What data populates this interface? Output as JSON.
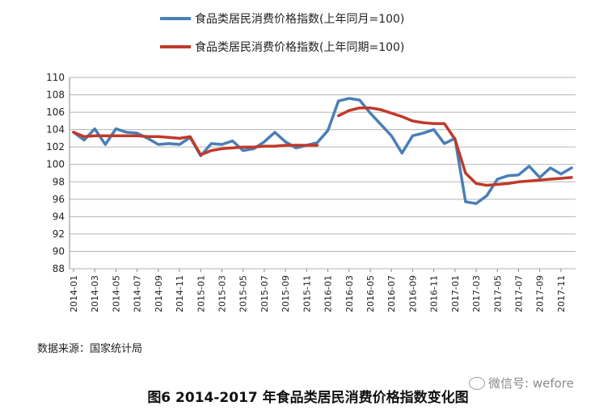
{
  "chart_data": {
    "type": "line",
    "title": "",
    "xlabel": "",
    "ylabel": "",
    "ylim": [
      88,
      110
    ],
    "yticks": [
      88,
      90,
      92,
      94,
      96,
      98,
      100,
      102,
      104,
      106,
      108,
      110
    ],
    "grid": true,
    "legend_position": "top-center",
    "x_tick_labels": [
      "2014-01",
      "2014-03",
      "2014-05",
      "2014-07",
      "2014-09",
      "2014-11",
      "2015-01",
      "2015-03",
      "2015-05",
      "2015-07",
      "2015-09",
      "2015-11",
      "2016-01",
      "2016-03",
      "2016-05",
      "2016-07",
      "2016-09",
      "2016-11",
      "2017-01",
      "2017-03",
      "2017-05",
      "2017-07",
      "2017-09",
      "2017-11"
    ],
    "x": [
      "2014-01",
      "2014-02",
      "2014-03",
      "2014-04",
      "2014-05",
      "2014-06",
      "2014-07",
      "2014-08",
      "2014-09",
      "2014-10",
      "2014-11",
      "2014-12",
      "2015-01",
      "2015-02",
      "2015-03",
      "2015-04",
      "2015-05",
      "2015-06",
      "2015-07",
      "2015-08",
      "2015-09",
      "2015-10",
      "2015-11",
      "2015-12",
      "2016-01",
      "2016-02",
      "2016-03",
      "2016-04",
      "2016-05",
      "2016-06",
      "2016-07",
      "2016-08",
      "2016-09",
      "2016-10",
      "2016-11",
      "2016-12",
      "2017-01",
      "2017-02",
      "2017-03",
      "2017-04",
      "2017-05",
      "2017-06",
      "2017-07",
      "2017-08",
      "2017-09",
      "2017-10",
      "2017-11",
      "2017-12"
    ],
    "series": [
      {
        "name": "食品类居民消费价格指数(上年同月=100)",
        "color": "#4a7fb5",
        "values": [
          103.7,
          102.8,
          104.1,
          102.3,
          104.1,
          103.7,
          103.6,
          103.0,
          102.3,
          102.4,
          102.3,
          103.1,
          101.0,
          102.4,
          102.3,
          102.7,
          101.6,
          101.8,
          102.6,
          103.7,
          102.6,
          101.9,
          102.2,
          102.5,
          103.9,
          107.3,
          107.6,
          107.4,
          105.9,
          104.6,
          103.3,
          101.3,
          103.3,
          103.6,
          104.0,
          102.4,
          103.0,
          95.7,
          95.5,
          96.4,
          98.3,
          98.7,
          98.8,
          99.8,
          98.5,
          99.6,
          98.9,
          99.6
        ]
      },
      {
        "name": "食品类居民消费价格指数(上年同期=100)",
        "color": "#c0392b",
        "values": [
          103.7,
          103.2,
          103.3,
          103.3,
          103.3,
          103.3,
          103.3,
          103.2,
          103.2,
          103.1,
          103.0,
          103.2,
          101.1,
          101.6,
          101.8,
          101.9,
          102.0,
          102.0,
          102.1,
          102.1,
          102.2,
          102.2,
          102.2,
          102.2,
          null,
          105.6,
          106.2,
          106.5,
          106.5,
          106.3,
          105.9,
          105.5,
          105.0,
          104.8,
          104.7,
          104.7,
          102.9,
          99.0,
          97.8,
          97.6,
          97.7,
          97.8,
          98.0,
          98.1,
          98.2,
          98.3,
          98.4,
          98.5
        ]
      }
    ]
  },
  "source_note": "数据来源：国家统计局",
  "caption": "图6 2014-2017 年食品类居民消费价格指数变化图",
  "watermark": "微信号: wefore"
}
